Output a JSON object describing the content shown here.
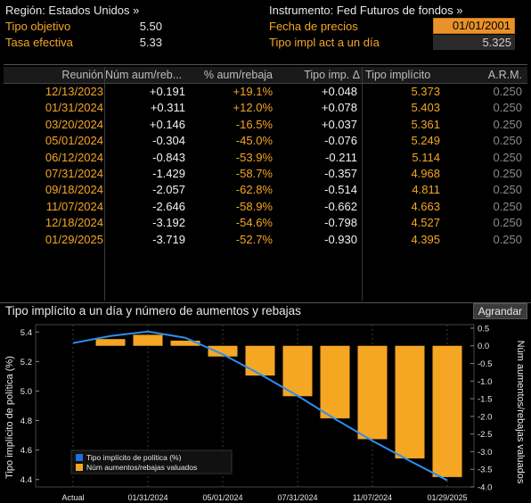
{
  "header": {
    "region_label": "Región: Estados Unidos »",
    "instrument_label": "Instrumento: Fed Futuros de fondos »",
    "target_label": "Tipo objetivo",
    "target_value": "5.50",
    "effective_label": "Tasa efectiva",
    "effective_value": "5.33",
    "price_date_label": "Fecha de precios",
    "price_date_value": "01/01/2001",
    "implied_label": "Tipo impl act a un día",
    "implied_value": "5.325"
  },
  "table": {
    "columns": [
      "Reunión",
      "Núm aum/reb...",
      "% aum/rebaja",
      "Tipo imp. Δ",
      "Tipo implícito",
      "A.R.M."
    ],
    "rows": [
      {
        "date": "12/13/2023",
        "num": "+0.191",
        "pct": "+19.1%",
        "delta": "+0.048",
        "implied": "5.373",
        "arm": "0.250"
      },
      {
        "date": "01/31/2024",
        "num": "+0.311",
        "pct": "+12.0%",
        "delta": "+0.078",
        "implied": "5.403",
        "arm": "0.250"
      },
      {
        "date": "03/20/2024",
        "num": "+0.146",
        "pct": "-16.5%",
        "delta": "+0.037",
        "implied": "5.361",
        "arm": "0.250"
      },
      {
        "date": "05/01/2024",
        "num": "-0.304",
        "pct": "-45.0%",
        "delta": "-0.076",
        "implied": "5.249",
        "arm": "0.250"
      },
      {
        "date": "06/12/2024",
        "num": "-0.843",
        "pct": "-53.9%",
        "delta": "-0.211",
        "implied": "5.114",
        "arm": "0.250"
      },
      {
        "date": "07/31/2024",
        "num": "-1.429",
        "pct": "-58.7%",
        "delta": "-0.357",
        "implied": "4.968",
        "arm": "0.250"
      },
      {
        "date": "09/18/2024",
        "num": "-2.057",
        "pct": "-62.8%",
        "delta": "-0.514",
        "implied": "4.811",
        "arm": "0.250"
      },
      {
        "date": "11/07/2024",
        "num": "-2.646",
        "pct": "-58.9%",
        "delta": "-0.662",
        "implied": "4.663",
        "arm": "0.250"
      },
      {
        "date": "12/18/2024",
        "num": "-3.192",
        "pct": "-54.6%",
        "delta": "-0.798",
        "implied": "4.527",
        "arm": "0.250"
      },
      {
        "date": "01/29/2025",
        "num": "-3.719",
        "pct": "-52.7%",
        "delta": "-0.930",
        "implied": "4.395",
        "arm": "0.250"
      }
    ]
  },
  "chart_header": {
    "title": "Tipo implícito a un día y número de aumentos y rebajas",
    "expand_label": "Agrandar"
  },
  "chart_data": {
    "type": "bar",
    "categories": [
      "Actual",
      "12/13/2023",
      "01/31/2024",
      "03/20/2024",
      "05/01/2024",
      "06/12/2024",
      "07/31/2024",
      "09/18/2024",
      "11/07/2024",
      "12/18/2024",
      "01/29/2025"
    ],
    "x_tick_labels": [
      "Actual",
      "01/31/2024",
      "05/01/2024",
      "07/31/2024",
      "11/07/2024",
      "01/29/2025"
    ],
    "series": [
      {
        "name": "Tipo implícito de política (%)",
        "type": "line",
        "axis": "left",
        "values": [
          5.325,
          5.373,
          5.403,
          5.361,
          5.249,
          5.114,
          4.968,
          4.811,
          4.663,
          4.527,
          4.395
        ]
      },
      {
        "name": "Núm aumentos/rebajas valuados",
        "type": "bar",
        "axis": "right",
        "values": [
          null,
          0.191,
          0.311,
          0.146,
          -0.304,
          -0.843,
          -1.429,
          -2.057,
          -2.646,
          -3.192,
          -3.719
        ]
      }
    ],
    "ylabel_left": "Tipo implícito de política (%)",
    "ylabel_right": "Núm aumentos/rebajas valuados",
    "ylim_left": [
      4.35,
      5.45
    ],
    "yticks_left": [
      "4.4",
      "4.6",
      "4.8",
      "5.0",
      "5.2",
      "5.4"
    ],
    "ylim_right": [
      -4.0,
      0.6
    ],
    "yticks_right": [
      "0.5",
      "0.0",
      "-0.5",
      "-1.0",
      "-1.5",
      "-2.0",
      "-2.5",
      "-3.0",
      "-3.5",
      "-4.0"
    ],
    "legend_position": "bottom-left",
    "colors": {
      "line": "#2d8ef0",
      "bar": "#f5a623",
      "legend_line": "#1f6fe0"
    }
  }
}
